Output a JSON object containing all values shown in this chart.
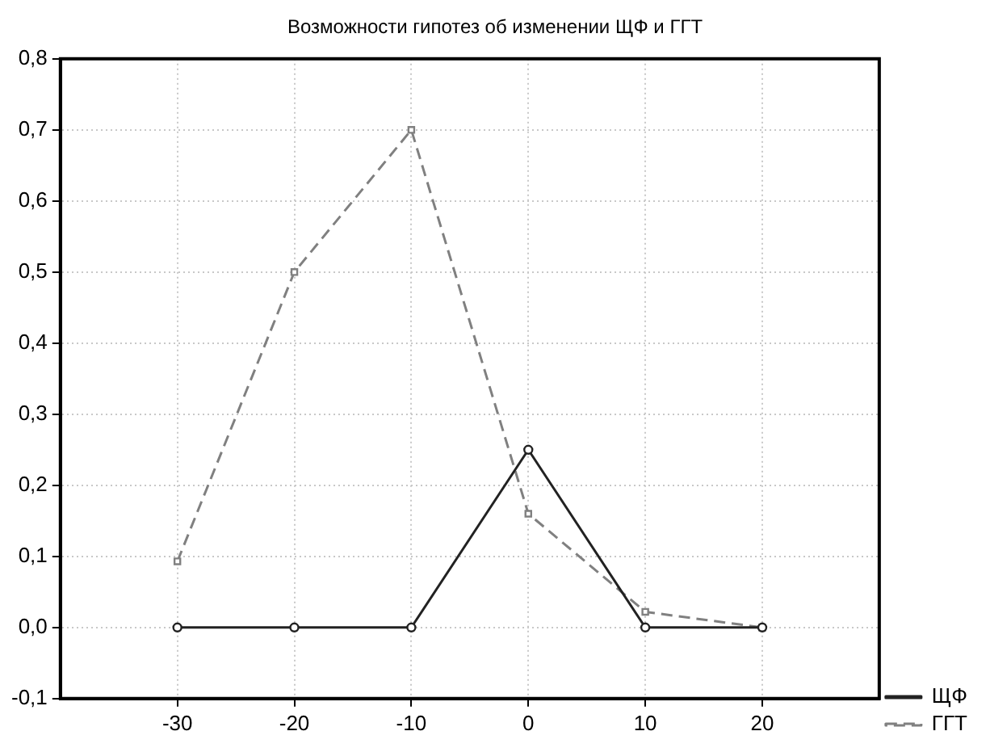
{
  "chart_data": {
    "type": "line",
    "title": "Возможности гипотез об изменении ЩФ и ГГТ",
    "x": [
      -30,
      -20,
      -10,
      0,
      10,
      20
    ],
    "series": [
      {
        "name": "ЩФ",
        "color": "#222222",
        "values": [
          0,
          0,
          0,
          0.25,
          0,
          0
        ],
        "marker": "circle",
        "line_style": "solid"
      },
      {
        "name": "ГГТ",
        "color": "#808080",
        "values": [
          0.093,
          0.5,
          0.7,
          0.16,
          0.022,
          0
        ],
        "marker": "square",
        "line_style": "dashed"
      }
    ],
    "xlim": [
      -40,
      30
    ],
    "xticks": [
      -30,
      -20,
      -10,
      0,
      10,
      20
    ],
    "ylim": [
      -0.1,
      0.8
    ],
    "yticks": [
      {
        "value": -0.1,
        "label": "-0,1"
      },
      {
        "value": 0,
        "label": "0,0"
      },
      {
        "value": 0.1,
        "label": "0,1"
      },
      {
        "value": 0.2,
        "label": "0,2"
      },
      {
        "value": 0.3,
        "label": "0,3"
      },
      {
        "value": 0.4,
        "label": "0,4"
      },
      {
        "value": 0.5,
        "label": "0,5"
      },
      {
        "value": 0.6,
        "label": "0,6"
      },
      {
        "value": 0.7,
        "label": "0,7"
      },
      {
        "value": 0.8,
        "label": "0,8"
      }
    ],
    "grid": true,
    "legend": "bottom right"
  }
}
